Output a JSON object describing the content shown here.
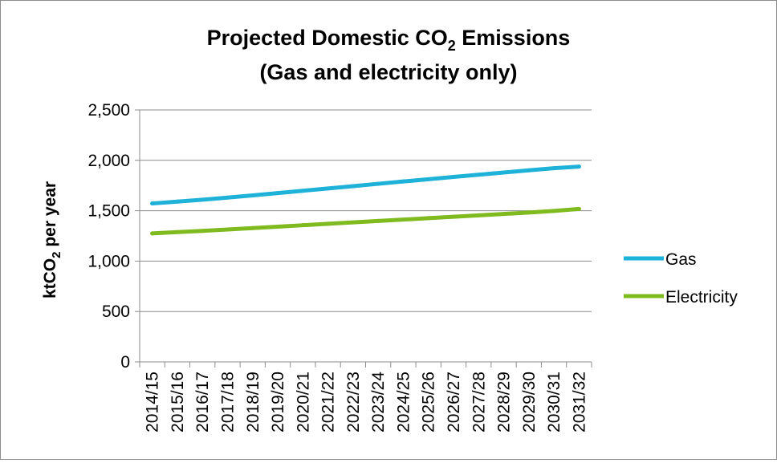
{
  "chart_data": {
    "type": "line",
    "title": {
      "line1_prefix": "Projected Domestic CO",
      "line1_sub": "2",
      "line1_suffix": " Emissions",
      "line2": "(Gas and electricity only)"
    },
    "ylabel": {
      "prefix": "ktCO",
      "sub": "2",
      "suffix": " per year"
    },
    "xlabel": "",
    "categories": [
      "2014/15",
      "2015/16",
      "2016/17",
      "2017/18",
      "2018/19",
      "2019/20",
      "2020/21",
      "2021/22",
      "2022/23",
      "2023/24",
      "2024/25",
      "2025/26",
      "2026/27",
      "2027/28",
      "2028/29",
      "2029/30",
      "2030/31",
      "2031/32"
    ],
    "ylim": [
      0,
      2500
    ],
    "yticks": [
      0,
      500,
      1000,
      1500,
      2000,
      2500
    ],
    "ytick_labels": [
      "0",
      "500",
      "1,000",
      "1,500",
      "2,000",
      "2,500"
    ],
    "grid": "horizontal",
    "legend_position": "right",
    "series": [
      {
        "name": "Gas",
        "color": "#1fb2d8",
        "values": [
          1572,
          1590,
          1609,
          1630,
          1652,
          1675,
          1698,
          1721,
          1744,
          1767,
          1790,
          1812,
          1835,
          1857,
          1879,
          1901,
          1922,
          1938
        ]
      },
      {
        "name": "Electricity",
        "color": "#7fba1f",
        "values": [
          1275,
          1288,
          1300,
          1314,
          1328,
          1342,
          1356,
          1370,
          1384,
          1398,
          1412,
          1426,
          1440,
          1454,
          1468,
          1482,
          1498,
          1518
        ]
      }
    ]
  }
}
